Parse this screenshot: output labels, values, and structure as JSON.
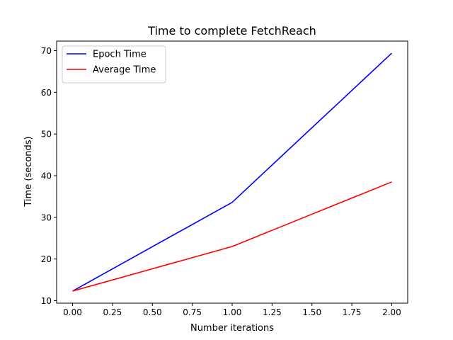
{
  "chart_data": {
    "type": "line",
    "title": "Time to complete FetchReach",
    "xlabel": "Number iterations",
    "ylabel": "Time (seconds)",
    "x": [
      0,
      1,
      2
    ],
    "xlim": [
      -0.1,
      2.1
    ],
    "ylim": [
      9.4,
      72.3
    ],
    "xticks": [
      0.0,
      0.25,
      0.5,
      0.75,
      1.0,
      1.25,
      1.5,
      1.75,
      2.0
    ],
    "xtick_labels": [
      "0.00",
      "0.25",
      "0.50",
      "0.75",
      "1.00",
      "1.25",
      "1.50",
      "1.75",
      "2.00"
    ],
    "yticks": [
      10,
      20,
      30,
      40,
      50,
      60,
      70
    ],
    "ytick_labels": [
      "10",
      "20",
      "30",
      "40",
      "50",
      "60",
      "70"
    ],
    "grid": false,
    "legend_position": "top-left",
    "series": [
      {
        "name": "Epoch Time",
        "color": "#0000ff",
        "values": [
          12.3,
          33.6,
          69.4
        ]
      },
      {
        "name": "Average Time",
        "color": "#ff0000",
        "values": [
          12.3,
          23.0,
          38.5
        ]
      }
    ]
  }
}
